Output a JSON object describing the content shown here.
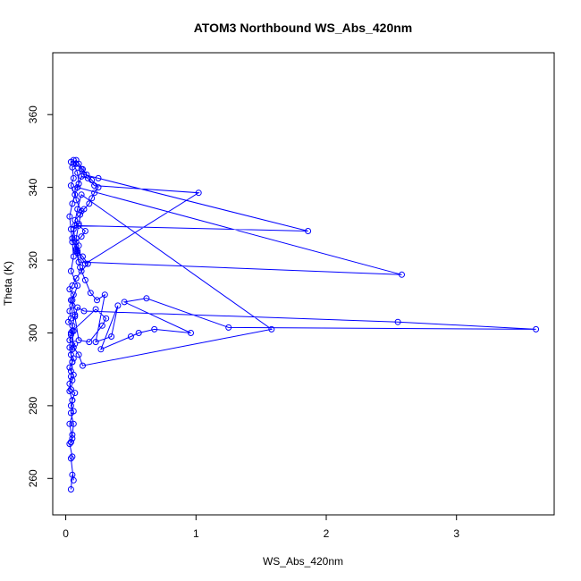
{
  "chart_data": {
    "type": "line",
    "title": "ATOM3 Northbound WS_Abs_420nm",
    "xlabel": "WS_Abs_420nm",
    "ylabel": "Theta (K)",
    "xlim": [
      -0.1,
      3.75
    ],
    "ylim": [
      250,
      377
    ],
    "xticks": [
      0,
      1,
      2,
      3
    ],
    "yticks": [
      260,
      280,
      300,
      320,
      340,
      360
    ],
    "grid": false,
    "series": [
      {
        "color": "#0000ff",
        "marker": "open-circle",
        "x": [
          0.04,
          0.05,
          0.06,
          0.04,
          0.05,
          0.03,
          0.04,
          0.05,
          0.03,
          0.06,
          0.04,
          0.05,
          0.07,
          0.04,
          0.03,
          0.05,
          0.06,
          0.04,
          0.03,
          0.05,
          0.06,
          0.04,
          0.05,
          0.07,
          0.03,
          0.04,
          0.06,
          0.05,
          0.02,
          0.04,
          0.03,
          0.05,
          0.04,
          0.06,
          0.03,
          0.05,
          0.08,
          0.12,
          0.17,
          0.13,
          0.09,
          0.1,
          0.08,
          0.12,
          0.15,
          0.1,
          0.07,
          0.11,
          0.14,
          0.18,
          0.2,
          0.22,
          0.25,
          0.2,
          0.16,
          0.13,
          0.1,
          0.08,
          0.06,
          0.09,
          0.1,
          0.07,
          0.08,
          0.12,
          0.1,
          0.08,
          0.09,
          0.11,
          0.15,
          0.19,
          0.24,
          0.3,
          0.23,
          0.35,
          0.4,
          0.27,
          0.5,
          0.56,
          0.68,
          0.96,
          0.45,
          0.62,
          1.25,
          3.61,
          2.55,
          0.14,
          0.09,
          0.07,
          0.1,
          0.18,
          0.28,
          0.31,
          0.23,
          0.05,
          0.06,
          0.1,
          0.13,
          1.58,
          0.12,
          0.09,
          0.06,
          0.08,
          0.15,
          1.02,
          0.22,
          0.17,
          0.12,
          0.09,
          2.58,
          0.1,
          0.08,
          0.05,
          0.07,
          1.86,
          0.25,
          0.14,
          0.12,
          0.08,
          0.06,
          0.04,
          0.08,
          0.05,
          0.06,
          0.04,
          0.07,
          0.05,
          0.03,
          0.04,
          0.05,
          0.06,
          0.04,
          0.09,
          0.05,
          0.07,
          0.04,
          0.03,
          0.05,
          0.04,
          0.03,
          0.05,
          0.04,
          0.06,
          0.05,
          0.04
        ],
        "y": [
          257,
          261,
          259.5,
          265.5,
          266,
          269.5,
          270,
          271,
          275,
          278.5,
          280,
          281.5,
          283.5,
          284.5,
          286,
          287,
          288.5,
          289.5,
          290.5,
          292,
          293,
          294,
          295.5,
          297,
          298,
          299.5,
          300.5,
          302,
          303,
          304,
          306,
          307.5,
          309,
          310.5,
          312,
          313,
          315,
          317,
          319,
          321,
          322.5,
          324,
          325,
          326.5,
          328,
          329.5,
          331,
          332.5,
          334,
          335.5,
          337,
          338.5,
          340,
          342,
          343.5,
          345,
          346.5,
          347.5,
          346.5,
          344,
          341,
          339.5,
          336.5,
          333.5,
          330,
          326,
          322,
          318,
          314.5,
          311,
          309,
          310.5,
          297.5,
          299,
          307.5,
          295.5,
          299,
          300,
          301,
          300,
          308.5,
          309.5,
          301.5,
          301,
          303,
          306,
          307,
          304.5,
          298,
          297.5,
          302,
          304,
          306.5,
          300.5,
          296,
          294,
          291,
          301,
          338,
          334,
          328.5,
          323,
          319,
          338.5,
          340.5,
          342.5,
          343,
          340,
          316,
          319.5,
          322.5,
          326,
          329.5,
          328,
          342.5,
          343.5,
          345,
          346.5,
          347.5,
          347,
          346.5,
          345.5,
          342.5,
          340.5,
          338,
          335.5,
          332,
          328.5,
          325,
          321,
          317,
          313,
          309,
          305,
          300,
          296,
          292,
          288,
          284,
          281.5,
          278,
          275,
          272,
          270
        ]
      }
    ]
  }
}
